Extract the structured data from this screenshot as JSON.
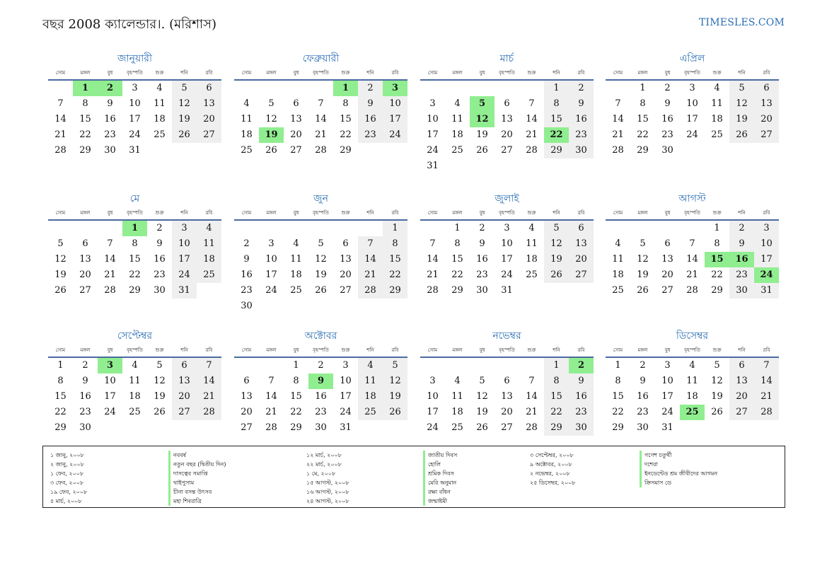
{
  "header": {
    "title": "বছর 2008 ক্যালেন্ডার।. (মরিশাস)",
    "site": "TIMESLES.COM"
  },
  "weekdays": [
    "সোম",
    "মঙ্গল",
    "বুধ",
    "বৃহস্পতি",
    "শুক্র",
    "শনি",
    "রবি"
  ],
  "months": [
    {
      "name": "জানুয়ারী",
      "offset": 1,
      "days": 31,
      "holidays": [
        1,
        2
      ]
    },
    {
      "name": "ফেব্রুয়ারী",
      "offset": 4,
      "days": 29,
      "holidays": [
        1,
        3,
        19
      ]
    },
    {
      "name": "মার্চ",
      "offset": 5,
      "days": 31,
      "holidays": [
        5,
        12,
        22
      ]
    },
    {
      "name": "এপ্রিল",
      "offset": 1,
      "days": 30,
      "holidays": []
    },
    {
      "name": "মে",
      "offset": 3,
      "days": 31,
      "holidays": [
        1
      ]
    },
    {
      "name": "জুন",
      "offset": 6,
      "days": 30,
      "holidays": []
    },
    {
      "name": "জুলাই",
      "offset": 1,
      "days": 31,
      "holidays": []
    },
    {
      "name": "আগস্ট",
      "offset": 4,
      "days": 31,
      "holidays": [
        15,
        16,
        24
      ]
    },
    {
      "name": "সেপ্টেম্বর",
      "offset": 0,
      "days": 30,
      "holidays": [
        3
      ]
    },
    {
      "name": "অক্টোবর",
      "offset": 2,
      "days": 31,
      "holidays": [
        9
      ]
    },
    {
      "name": "নভেম্বর",
      "offset": 5,
      "days": 30,
      "holidays": [
        2
      ]
    },
    {
      "name": "ডিসেম্বর",
      "offset": 0,
      "days": 31,
      "holidays": [
        25
      ]
    }
  ],
  "holiday_list": [
    [
      {
        "date": "১ জানু, ২০০৮",
        "name": "নববর্ষ"
      },
      {
        "date": "২ জানু, ২০০৮",
        "name": "নতুন বছর (দ্বিতীয় দিন)"
      },
      {
        "date": "১ ফেব, ২০০৮",
        "name": "দাসত্বের সমাপ্তি"
      },
      {
        "date": "৩ ফেব, ২০০৮",
        "name": "থাইপুসাম"
      },
      {
        "date": "১৯ ফেব, ২০০৮",
        "name": "চীনা বসন্ত উৎসব"
      },
      {
        "date": "৫ মার্চ, ২০০৮",
        "name": "মহা শিবরাত্রি"
      }
    ],
    [
      {
        "date": "১২ মার্চ, ২০০৮",
        "name": "জাতীয় দিবস"
      },
      {
        "date": "২২ মার্চ, ২০০৮",
        "name": "হোলি"
      },
      {
        "date": "১ মে, ২০০৮",
        "name": "শ্রমিক দিবস"
      },
      {
        "date": "১৫ আগস্ট, ২০০৮",
        "name": "মেরি অনুমান"
      },
      {
        "date": "১৬ আগস্ট, ২০০৮",
        "name": "রক্ষা বাঁধন"
      },
      {
        "date": "২৪ আগস্ট, ২০০৮",
        "name": "জন্মাষ্টমী"
      }
    ],
    [
      {
        "date": "৩ সেপ্টেম্বর, ২০০৮",
        "name": "গণেশ চতুর্থী"
      },
      {
        "date": "৯ অক্টোবর, ২০০৮",
        "name": "দশেরা"
      },
      {
        "date": "২ নভেম্বর, ২০০৮",
        "name": "ইনডেন্টেড শ্রম জীবীদের আগমন"
      },
      {
        "date": "২৫ ডিসেম্বর, ২০০৮",
        "name": "ক্রিসমাস ডে"
      }
    ]
  ],
  "colors": {
    "accent": "#2a6db5",
    "holiday": "#90ee90",
    "weekend": "#efefef"
  }
}
